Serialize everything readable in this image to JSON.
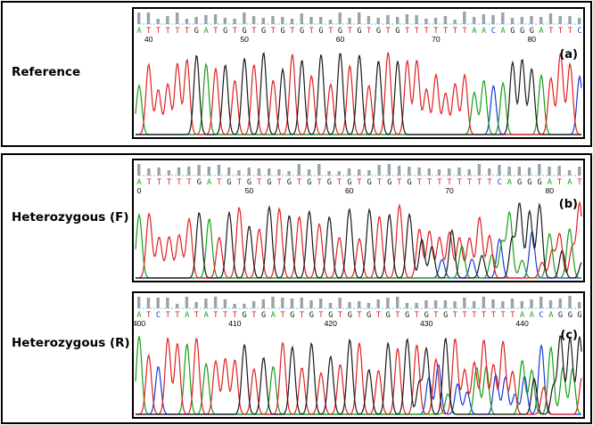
{
  "colors": {
    "A": "#16a016",
    "T": "#e02020",
    "G": "#1a1a1a",
    "C": "#1a3ad8",
    "bar": "#9aa3a8",
    "dots": "#7fb8d8"
  },
  "panels": [
    {
      "id": "a",
      "side_label": "Reference",
      "tag": "(a)",
      "sequence": "ATTTTTGATGTGTGTGTGTGTGTGTGTGTTTTTTTAACAGGGATTTC",
      "positions": [
        {
          "label": "40",
          "index": 1
        },
        {
          "label": "50",
          "index": 11
        },
        {
          "label": "60",
          "index": 21
        },
        {
          "label": "70",
          "index": 31
        },
        {
          "label": "80",
          "index": 41
        }
      ],
      "noisy": false
    },
    {
      "id": "b",
      "side_label": "Heterozygous (F)",
      "tag": "(b)",
      "sequence": "ATTTTTGATGTGTGTGTGTGTGTGTGTGTTTTTTTTCAGGGATAT",
      "positions": [
        {
          "label": "0",
          "index": 0
        },
        {
          "label": "50",
          "index": 11
        },
        {
          "label": "60",
          "index": 21
        },
        {
          "label": "70",
          "index": 31
        },
        {
          "label": "80",
          "index": 41
        }
      ],
      "noisy": true
    },
    {
      "id": "c",
      "side_label": "Heterozygous (R)",
      "tag": "(c)",
      "sequence": "ATCTTATATTTGTGATGTGTGTGTGTGTGTGTGTTTTTTTAACAGGG",
      "positions": [
        {
          "label": "400",
          "index": 0
        },
        {
          "label": "410",
          "index": 10
        },
        {
          "label": "420",
          "index": 20
        },
        {
          "label": "430",
          "index": 30
        },
        {
          "label": "440",
          "index": 40
        }
      ],
      "noisy": true
    }
  ]
}
